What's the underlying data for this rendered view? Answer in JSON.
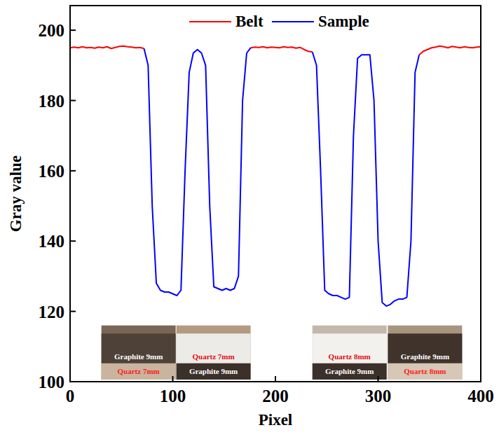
{
  "chart_data": {
    "type": "line",
    "x_label": "Pixel",
    "y_label": "Gray value",
    "xlim": [
      0,
      400
    ],
    "xticks": [
      0,
      100,
      200,
      300,
      400
    ],
    "ylim": [
      100,
      207
    ],
    "yticks": [
      100,
      120,
      140,
      160,
      180,
      200
    ],
    "legend": "top",
    "x": [
      0,
      4,
      8,
      12,
      16,
      20,
      24,
      28,
      32,
      36,
      40,
      44,
      48,
      52,
      56,
      60,
      64,
      68,
      72,
      76,
      80,
      84,
      88,
      92,
      96,
      100,
      104,
      108,
      112,
      116,
      120,
      124,
      128,
      132,
      136,
      140,
      144,
      148,
      152,
      156,
      160,
      164,
      168,
      172,
      176,
      180,
      184,
      188,
      192,
      196,
      200,
      204,
      208,
      212,
      216,
      220,
      224,
      228,
      232,
      236,
      240,
      244,
      248,
      252,
      256,
      260,
      264,
      268,
      272,
      276,
      280,
      284,
      288,
      292,
      296,
      300,
      304,
      308,
      312,
      316,
      320,
      324,
      328,
      332,
      336,
      340,
      344,
      348,
      352,
      356,
      360,
      364,
      368,
      372,
      376,
      380,
      384,
      388,
      392,
      396,
      400
    ],
    "series": [
      {
        "name": "Belt",
        "color": "#ff0000",
        "values": [
          195,
          195.2,
          195,
          195.3,
          195,
          195.1,
          194.9,
          195.2,
          195,
          195.3,
          194.8,
          195.1,
          195.4,
          195.5,
          195.3,
          195.2,
          195,
          195.1,
          194.8,
          null,
          null,
          null,
          null,
          null,
          null,
          null,
          null,
          null,
          null,
          null,
          null,
          null,
          null,
          null,
          null,
          null,
          null,
          null,
          null,
          null,
          null,
          null,
          null,
          null,
          195,
          195.2,
          195.1,
          195.3,
          195,
          195.2,
          195.1,
          195,
          195.3,
          195.1,
          195.2,
          194.9,
          195.1,
          194.5,
          194,
          193.8,
          null,
          null,
          null,
          null,
          null,
          null,
          null,
          null,
          null,
          null,
          null,
          null,
          null,
          null,
          null,
          null,
          null,
          null,
          null,
          null,
          null,
          null,
          null,
          null,
          null,
          193,
          194,
          194.5,
          195,
          195.2,
          195.5,
          195.3,
          195,
          195.4,
          195.2,
          195,
          195.3,
          195.1,
          195,
          195.2,
          195.3
        ]
      },
      {
        "name": "Sample",
        "color": "#0000ff",
        "values": [
          null,
          null,
          null,
          null,
          null,
          null,
          null,
          null,
          null,
          null,
          null,
          null,
          null,
          null,
          null,
          null,
          null,
          null,
          194.8,
          190,
          150,
          128,
          126,
          125.5,
          125.5,
          125,
          124.5,
          126,
          160,
          188,
          193.5,
          194.5,
          193.5,
          190,
          150,
          127,
          126.5,
          126,
          126.5,
          126,
          126.5,
          130,
          180,
          193.5,
          195,
          null,
          null,
          null,
          null,
          null,
          null,
          null,
          null,
          null,
          null,
          null,
          null,
          null,
          null,
          193.8,
          190,
          160,
          126,
          125,
          124.5,
          124.5,
          124,
          123.5,
          124,
          170,
          192,
          193,
          193,
          193,
          180,
          140,
          122.5,
          121.5,
          122,
          123,
          123.5,
          123.5,
          124,
          140,
          188,
          193,
          null,
          null,
          null,
          null,
          null,
          null,
          null,
          null,
          null,
          null,
          null,
          null,
          null,
          null,
          null
        ]
      }
    ],
    "annotations": [
      {
        "top": "Graphite 9mm",
        "bottom": "Quartz 7mm"
      },
      {
        "top": "Quartz 7mm",
        "bottom": "Graphite 9mm"
      },
      {
        "top": "Quartz 8mm",
        "bottom": "Graphite 9mm"
      },
      {
        "top": "Graphite 9mm",
        "bottom": "Quartz 8mm"
      }
    ]
  }
}
